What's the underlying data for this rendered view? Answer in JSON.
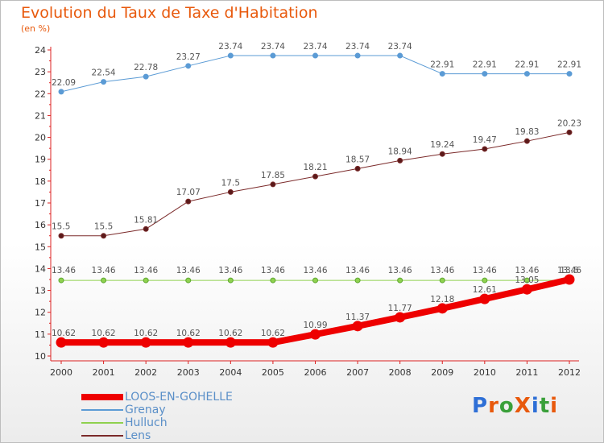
{
  "chart_title": "Evolution du Taux de Taxe d'Habitation",
  "chart_subtitle": "(en %)",
  "brand": {
    "text": "ProXiti",
    "letter_colors": [
      "#2e6fd6",
      "#e8590c",
      "#3aa03a",
      "#e8590c",
      "#2e6fd6",
      "#3aa03a",
      "#e8590c"
    ]
  },
  "chart_data": {
    "type": "line",
    "title": "Evolution du Taux de Taxe d'Habitation",
    "ylabel": "(en %)",
    "xlabel": "",
    "categories": [
      "2000",
      "2001",
      "2002",
      "2003",
      "2004",
      "2005",
      "2006",
      "2007",
      "2008",
      "2009",
      "2010",
      "2011",
      "2012"
    ],
    "ylim": [
      10,
      24
    ],
    "yticks": [
      "10",
      "11",
      "12",
      "13",
      "14",
      "15",
      "16",
      "17",
      "18",
      "19",
      "20",
      "21",
      "22",
      "23",
      "24"
    ],
    "grid": false,
    "legend_position": "bottom-left",
    "series": [
      {
        "name": "LOOS-EN-GOHELLE",
        "color": "#ee0000",
        "values": [
          10.62,
          10.62,
          10.62,
          10.62,
          10.62,
          10.62,
          10.99,
          11.37,
          11.77,
          12.18,
          12.61,
          13.05,
          13.5
        ],
        "labels": [
          "10.62",
          "10.62",
          "10.62",
          "10.62",
          "10.62",
          "10.62",
          "10.99",
          "11.37",
          "11.77",
          "12.18",
          "12.61",
          "13.05",
          "13.5"
        ]
      },
      {
        "name": "Grenay",
        "color": "#5b9bd5",
        "values": [
          22.09,
          22.54,
          22.78,
          23.27,
          23.74,
          23.74,
          23.74,
          23.74,
          23.74,
          22.91,
          22.91,
          22.91,
          22.91
        ],
        "labels": [
          "22.09",
          "22.54",
          "22.78",
          "23.27",
          "23.74",
          "23.74",
          "23.74",
          "23.74",
          "23.74",
          "22.91",
          "22.91",
          "22.91",
          "22.91"
        ]
      },
      {
        "name": "Hulluch",
        "color": "#8fd14f",
        "values": [
          13.46,
          13.46,
          13.46,
          13.46,
          13.46,
          13.46,
          13.46,
          13.46,
          13.46,
          13.46,
          13.46,
          13.46,
          13.46
        ],
        "labels": [
          "13.46",
          "13.46",
          "13.46",
          "13.46",
          "13.46",
          "13.46",
          "13.46",
          "13.46",
          "13.46",
          "13.46",
          "13.46",
          "13.46",
          "13.46"
        ]
      },
      {
        "name": "Lens",
        "color": "#7b2a2a",
        "values": [
          15.5,
          15.5,
          15.81,
          17.07,
          17.5,
          17.85,
          18.21,
          18.57,
          18.94,
          19.24,
          19.47,
          19.83,
          20.23
        ],
        "labels": [
          "15.5",
          "15.5",
          "15.81",
          "17.07",
          "17.5",
          "17.85",
          "18.21",
          "18.57",
          "18.94",
          "19.24",
          "19.47",
          "19.83",
          "20.23"
        ]
      }
    ]
  }
}
